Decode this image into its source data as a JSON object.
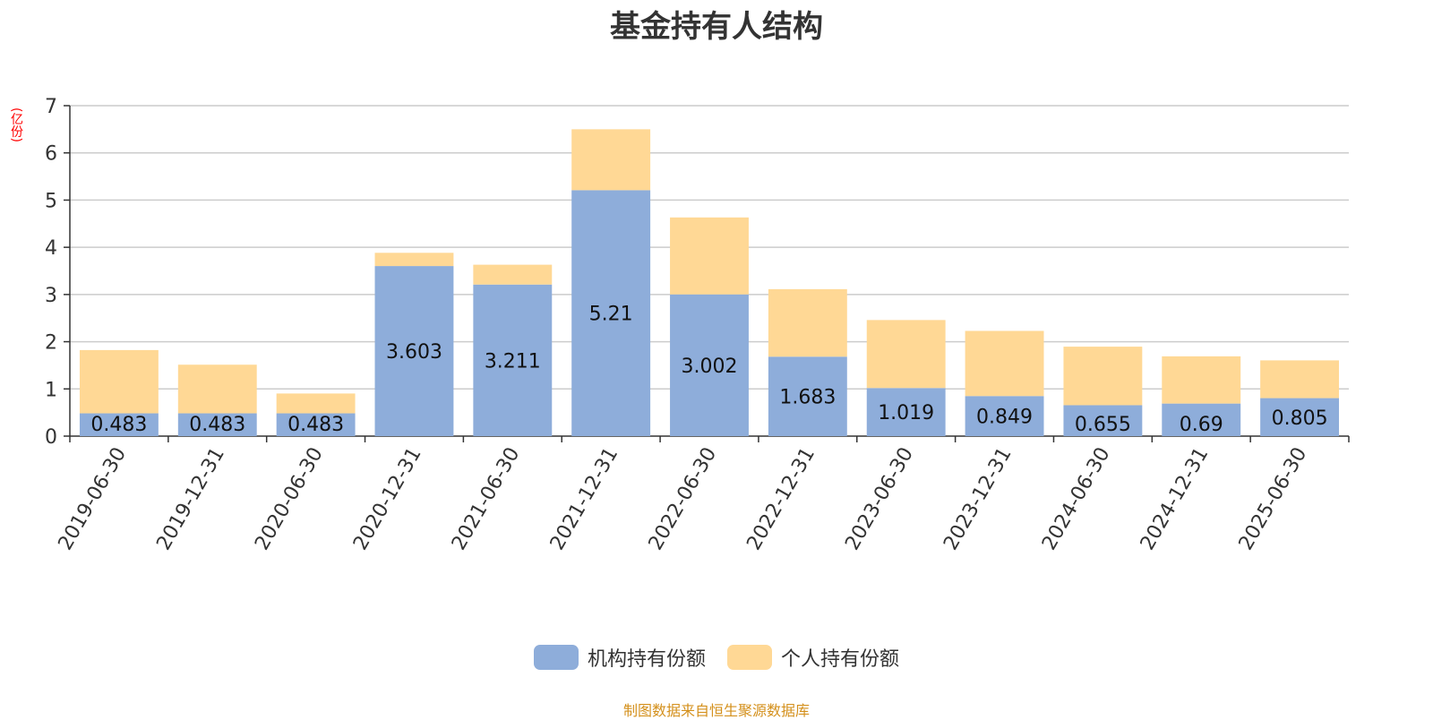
{
  "title": "基金持有人结构",
  "y_unit": "(亿份)",
  "source": "制图数据来自恒生聚源数据库",
  "colors": {
    "institutional": "#8eadda",
    "individual": "#ffd895"
  },
  "legend": [
    {
      "label": "机构持有份额",
      "color": "#8eadda"
    },
    {
      "label": "个人持有份额",
      "color": "#ffd895"
    }
  ],
  "chart_data": {
    "type": "bar",
    "stacked": true,
    "title": "基金持有人结构",
    "ylabel": "(亿份)",
    "ylim": [
      0,
      7
    ],
    "yticks": [
      0,
      1,
      2,
      3,
      4,
      5,
      6,
      7
    ],
    "grid": true,
    "legend_position": "bottom",
    "categories": [
      "2019-06-30",
      "2019-12-31",
      "2020-06-30",
      "2020-12-31",
      "2021-06-30",
      "2021-12-31",
      "2022-06-30",
      "2022-12-31",
      "2023-06-30",
      "2023-12-31",
      "2024-06-30",
      "2024-12-31",
      "2025-06-30"
    ],
    "series": [
      {
        "name": "机构持有份额",
        "values": [
          0.483,
          0.483,
          0.483,
          3.603,
          3.211,
          5.21,
          3.002,
          1.683,
          1.019,
          0.849,
          0.655,
          0.69,
          0.805
        ],
        "data_labels": [
          "0.483",
          "0.483",
          "0.483",
          "3.603",
          "3.211",
          "5.21",
          "3.002",
          "1.683",
          "1.019",
          "0.849",
          "0.655",
          "0.69",
          "0.805"
        ]
      },
      {
        "name": "个人持有份额",
        "values": [
          1.34,
          1.03,
          0.42,
          0.28,
          0.42,
          1.29,
          1.63,
          1.43,
          1.44,
          1.38,
          1.24,
          1.0,
          0.8
        ]
      }
    ]
  }
}
